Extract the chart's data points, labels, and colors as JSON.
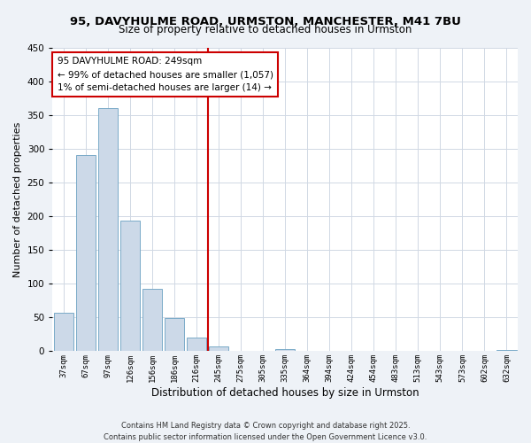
{
  "title": "95, DAVYHULME ROAD, URMSTON, MANCHESTER, M41 7BU",
  "subtitle": "Size of property relative to detached houses in Urmston",
  "xlabel": "Distribution of detached houses by size in Urmston",
  "ylabel": "Number of detached properties",
  "bar_labels": [
    "37sqm",
    "67sqm",
    "97sqm",
    "126sqm",
    "156sqm",
    "186sqm",
    "216sqm",
    "245sqm",
    "275sqm",
    "305sqm",
    "335sqm",
    "364sqm",
    "394sqm",
    "424sqm",
    "454sqm",
    "483sqm",
    "513sqm",
    "543sqm",
    "573sqm",
    "602sqm",
    "632sqm"
  ],
  "bar_values": [
    57,
    291,
    360,
    194,
    93,
    49,
    20,
    7,
    0,
    0,
    3,
    0,
    0,
    0,
    0,
    0,
    0,
    0,
    0,
    0,
    2
  ],
  "bar_color": "#ccd9e8",
  "bar_edge_color": "#7aaac8",
  "ylim": [
    0,
    450
  ],
  "yticks": [
    0,
    50,
    100,
    150,
    200,
    250,
    300,
    350,
    400,
    450
  ],
  "vline_index": 7,
  "vline_color": "#cc0000",
  "annotation_text": "95 DAVYHULME ROAD: 249sqm\n← 99% of detached houses are smaller (1,057)\n1% of semi-detached houses are larger (14) →",
  "annotation_box_color": "#ffffff",
  "annotation_box_edge": "#cc0000",
  "bg_color": "#eef2f7",
  "plot_bg_color": "#ffffff",
  "grid_color": "#d0d8e4",
  "footer_line1": "Contains HM Land Registry data © Crown copyright and database right 2025.",
  "footer_line2": "Contains public sector information licensed under the Open Government Licence v3.0."
}
